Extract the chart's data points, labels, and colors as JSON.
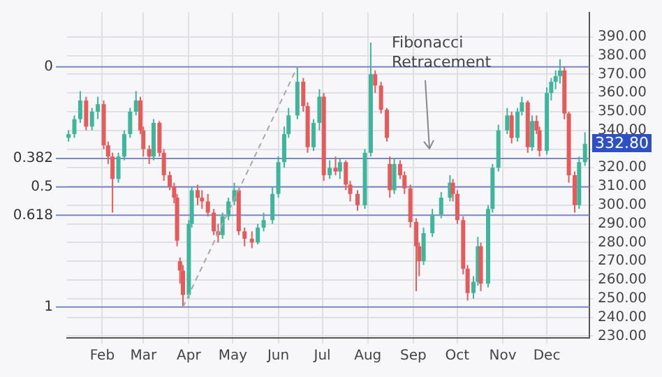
{
  "chart_data": {
    "type": "candlestick",
    "x": [
      "--01-09",
      "--01-13",
      "--01-17",
      "--01-21",
      "--01-25",
      "--01-29",
      "--02-02",
      "--02-05",
      "--02-08",
      "--02-12",
      "--02-16",
      "--02-20",
      "--02-24",
      "--02-27",
      "--03-01",
      "--03-05",
      "--03-08",
      "--03-12",
      "--03-15",
      "--03-19",
      "--03-22",
      "--03-24",
      "--03-26",
      "--03-28",
      "--04-01",
      "--04-03",
      "--04-07",
      "--04-10",
      "--04-14",
      "--04-18",
      "--04-21",
      "--04-24",
      "--04-28",
      "--05-02",
      "--05-05",
      "--05-09",
      "--05-14",
      "--05-18",
      "--05-22",
      "--05-28",
      "--06-01",
      "--06-05",
      "--06-08",
      "--06-14",
      "--06-18",
      "--06-21",
      "--06-25",
      "--06-29",
      "--07-02",
      "--07-06",
      "--07-10",
      "--07-13",
      "--07-17",
      "--07-20",
      "--07-25",
      "--07-30",
      "--08-03",
      "--08-06",
      "--08-10",
      "--08-14",
      "--08-16",
      "--08-19",
      "--08-23",
      "--08-26",
      "--08-30",
      "--09-03",
      "--09-05",
      "--09-08",
      "--09-14",
      "--09-20",
      "--09-26",
      "--09-28",
      "--10-01",
      "--10-05",
      "--10-08",
      "--10-12",
      "--10-15",
      "--10-17",
      "--10-22",
      "--10-25",
      "--10-29",
      "--11-04",
      "--11-07",
      "--11-11",
      "--11-14",
      "--11-18",
      "--11-21",
      "--11-24",
      "--11-26",
      "--12-01",
      "--12-04",
      "--12-07",
      "--12-10",
      "--12-13",
      "--12-16",
      "--12-20",
      "--12-23",
      "--12-27"
    ],
    "ohlc": [
      [
        336,
        340,
        334,
        338
      ],
      [
        338,
        348,
        336,
        346
      ],
      [
        346,
        361,
        344,
        356
      ],
      [
        356,
        358,
        340,
        342
      ],
      [
        342,
        352,
        340,
        350
      ],
      [
        350,
        358,
        346,
        354
      ],
      [
        354,
        356,
        330,
        332
      ],
      [
        332,
        334,
        322,
        326
      ],
      [
        326,
        328,
        296,
        314
      ],
      [
        314,
        328,
        312,
        326
      ],
      [
        326,
        340,
        324,
        338
      ],
      [
        338,
        352,
        336,
        350
      ],
      [
        350,
        361,
        348,
        356
      ],
      [
        356,
        358,
        338,
        340
      ],
      [
        340,
        342,
        326,
        330
      ],
      [
        330,
        332,
        322,
        326
      ],
      [
        326,
        346,
        324,
        344
      ],
      [
        344,
        345,
        326,
        328
      ],
      [
        328,
        330,
        313,
        316
      ],
      [
        316,
        318,
        308,
        310
      ],
      [
        310,
        312,
        301,
        304
      ],
      [
        304,
        306,
        278,
        281
      ],
      [
        270,
        272,
        258,
        265
      ],
      [
        265,
        268,
        245.5,
        252
      ],
      [
        252,
        292,
        250,
        290
      ],
      [
        290,
        310,
        288,
        308
      ],
      [
        308,
        311,
        300,
        304
      ],
      [
        304,
        308,
        298,
        302
      ],
      [
        302,
        306,
        294,
        296
      ],
      [
        296,
        298,
        284,
        286
      ],
      [
        286,
        290,
        280,
        284
      ],
      [
        284,
        296,
        282,
        294
      ],
      [
        294,
        304,
        292,
        302
      ],
      [
        302,
        312,
        300,
        308
      ],
      [
        308,
        309,
        284,
        286
      ],
      [
        286,
        288,
        278,
        282
      ],
      [
        282,
        286,
        277,
        280
      ],
      [
        280,
        290,
        279,
        288
      ],
      [
        288,
        296,
        286,
        292
      ],
      [
        292,
        310,
        290,
        306
      ],
      [
        306,
        326,
        304,
        323
      ],
      [
        323,
        342,
        320,
        338
      ],
      [
        338,
        352,
        336,
        348
      ],
      [
        348,
        374,
        346,
        366
      ],
      [
        366,
        368,
        350,
        353
      ],
      [
        353,
        355,
        328,
        331
      ],
      [
        331,
        346,
        329,
        344
      ],
      [
        344,
        362,
        340,
        358
      ],
      [
        358,
        360,
        313,
        316
      ],
      [
        316,
        324,
        314,
        320
      ],
      [
        320,
        326,
        316,
        318
      ],
      [
        318,
        325,
        314,
        323
      ],
      [
        323,
        324,
        308,
        311
      ],
      [
        311,
        313,
        302,
        306
      ],
      [
        306,
        308,
        297,
        300
      ],
      [
        300,
        330,
        298,
        328
      ],
      [
        328,
        387,
        326,
        370
      ],
      [
        370,
        372,
        360,
        364
      ],
      [
        364,
        366,
        349,
        351
      ],
      [
        351,
        352,
        334,
        336
      ],
      [
        322,
        326,
        304,
        308
      ],
      [
        308,
        325,
        306,
        322
      ],
      [
        322,
        324,
        314,
        316
      ],
      [
        316,
        318,
        306,
        309
      ],
      [
        309,
        311,
        288,
        291
      ],
      [
        291,
        293,
        254,
        278
      ],
      [
        278,
        280,
        262,
        270
      ],
      [
        270,
        288,
        268,
        285
      ],
      [
        285,
        298,
        283,
        295
      ],
      [
        295,
        307,
        293,
        304
      ],
      [
        304,
        316,
        302,
        312
      ],
      [
        312,
        314,
        302,
        306
      ],
      [
        306,
        308,
        290,
        292
      ],
      [
        292,
        294,
        263,
        266
      ],
      [
        266,
        268,
        249,
        253
      ],
      [
        253,
        262,
        250,
        259
      ],
      [
        259,
        283,
        257,
        278
      ],
      [
        278,
        280,
        254,
        258
      ],
      [
        258,
        300,
        256,
        298
      ],
      [
        298,
        322,
        296,
        320
      ],
      [
        320,
        343,
        318,
        340
      ],
      [
        340,
        352,
        338,
        348
      ],
      [
        348,
        350,
        333,
        336
      ],
      [
        336,
        352,
        334,
        350
      ],
      [
        350,
        358,
        348,
        355
      ],
      [
        355,
        356,
        328,
        331
      ],
      [
        331,
        348,
        329,
        345
      ],
      [
        345,
        348,
        338,
        340
      ],
      [
        340,
        342,
        326,
        329
      ],
      [
        329,
        363,
        327,
        360
      ],
      [
        360,
        368,
        356,
        366
      ],
      [
        366,
        372,
        362,
        369
      ],
      [
        369,
        378,
        365,
        372
      ],
      [
        372,
        374,
        346,
        349
      ],
      [
        349,
        350,
        312,
        316
      ],
      [
        316,
        318,
        296,
        300
      ],
      [
        300,
        326,
        298,
        323
      ],
      [
        323,
        339,
        321,
        332.8
      ]
    ],
    "series": [
      {
        "type": "line",
        "line_style": "dashed",
        "color": "#a8a8a8",
        "x": [
          "--03-28",
          "--06-14"
        ],
        "values": [
          245.5,
          374
        ]
      }
    ],
    "xlim": [
      "--01-08",
      "--12-30"
    ],
    "xticks": [
      {
        "value": "--02-01",
        "label": "Feb"
      },
      {
        "value": "--03-01",
        "label": "Mar"
      },
      {
        "value": "--04-01",
        "label": "Apr"
      },
      {
        "value": "--05-01",
        "label": "May"
      },
      {
        "value": "--06-01",
        "label": "Jun"
      },
      {
        "value": "--07-01",
        "label": "Jul"
      },
      {
        "value": "--08-01",
        "label": "Aug"
      },
      {
        "value": "--09-01",
        "label": "Sep"
      },
      {
        "value": "--10-01",
        "label": "Oct"
      },
      {
        "value": "--11-01",
        "label": "Nov"
      },
      {
        "value": "--12-01",
        "label": "Dec"
      }
    ],
    "ylim": [
      229,
      403
    ],
    "yticks": [
      {
        "value": 230,
        "label": "230.00"
      },
      {
        "value": 240,
        "label": "240.00"
      },
      {
        "value": 250,
        "label": "250.00"
      },
      {
        "value": 260,
        "label": "260.00"
      },
      {
        "value": 270,
        "label": "270.00"
      },
      {
        "value": 280,
        "label": "280.00"
      },
      {
        "value": 290,
        "label": "290.00"
      },
      {
        "value": 300,
        "label": "300.00"
      },
      {
        "value": 310,
        "label": "310.00"
      },
      {
        "value": 320,
        "label": "320.00"
      },
      {
        "value": 330,
        "label": null
      },
      {
        "value": 340,
        "label": "340.00"
      },
      {
        "value": 350,
        "label": "350.00"
      },
      {
        "value": 360,
        "label": "360.00"
      },
      {
        "value": 370,
        "label": "370.00"
      },
      {
        "value": 380,
        "label": "380.00"
      },
      {
        "value": 390,
        "label": "390.00"
      }
    ],
    "ref_lines": [
      {
        "axis": "y",
        "value": 374,
        "color": "#7c86c4"
      },
      {
        "axis": "y",
        "value": 325,
        "color": "#7c86c4"
      },
      {
        "axis": "y",
        "value": 309.75,
        "color": "#7c86c4"
      },
      {
        "axis": "y",
        "value": 294.6,
        "color": "#7c86c4"
      },
      {
        "axis": "y",
        "value": 245.5,
        "color": "#7c86c4"
      }
    ],
    "annotations": [
      {
        "text": "0",
        "x": "--01-08",
        "y": 374
      },
      {
        "text": "0.382",
        "x": "--01-08",
        "y": 325
      },
      {
        "text": "0.5",
        "x": "--01-08",
        "y": 309.75
      },
      {
        "text": "0.618",
        "x": "--01-08",
        "y": 294.6
      },
      {
        "text": "1",
        "x": "--01-08",
        "y": 245.5
      },
      {
        "text": "Fibonacci Retracement",
        "x": "--09-12",
        "y": 328
      },
      {
        "text": "332.80",
        "x": "--12-27",
        "y": 332.8
      }
    ],
    "grid": true,
    "legend": false
  }
}
